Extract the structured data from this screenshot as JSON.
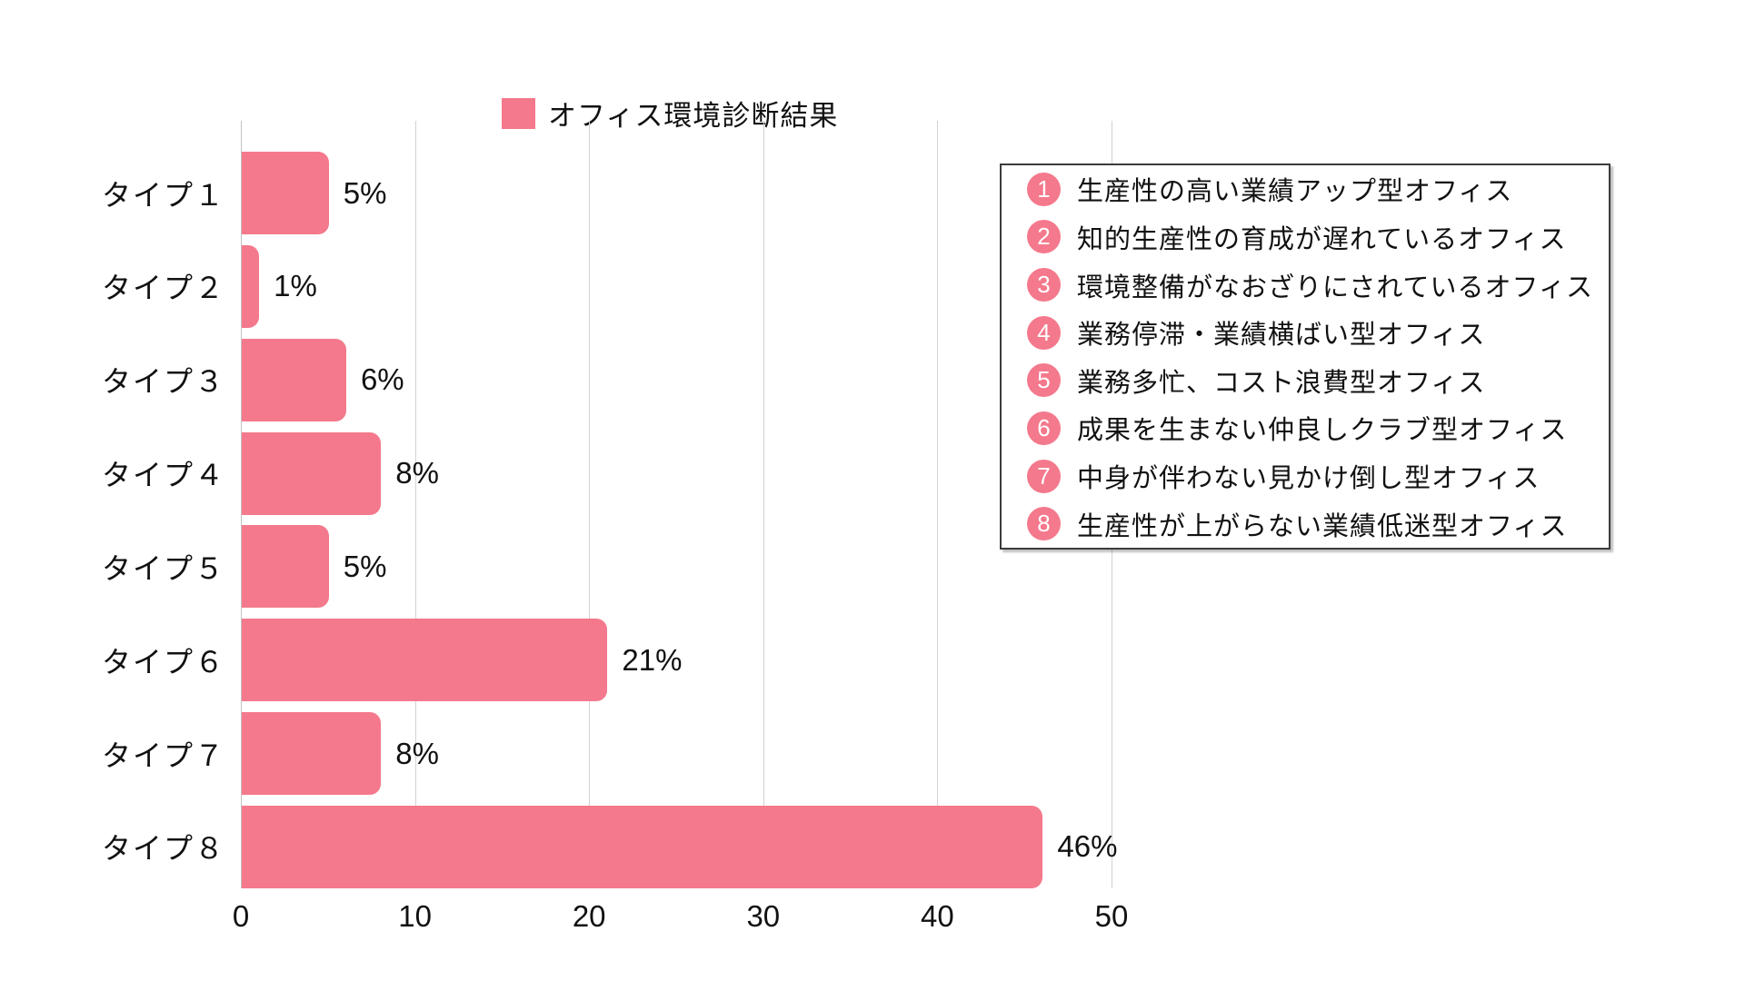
{
  "title": {
    "label": "オフィス環境診断結果",
    "swatch_color": "#F4798C"
  },
  "chart_data": {
    "type": "bar",
    "orientation": "horizontal",
    "title": "オフィス環境診断結果",
    "categories": [
      "タイプ１",
      "タイプ２",
      "タイプ３",
      "タイプ４",
      "タイプ５",
      "タイプ６",
      "タイプ７",
      "タイプ８"
    ],
    "values": [
      5,
      1,
      6,
      8,
      5,
      21,
      8,
      46
    ],
    "value_labels": [
      "5%",
      "1%",
      "6%",
      "8%",
      "5%",
      "21%",
      "8%",
      "46%"
    ],
    "xlabel": "",
    "ylabel": "",
    "xlim": [
      0,
      50
    ],
    "x_ticks": [
      "0",
      "10",
      "20",
      "30",
      "40",
      "50"
    ],
    "grid": true,
    "bar_color": "#F4798C",
    "grid_color": "#d2d2d2",
    "legend_position": "top"
  },
  "legend": {
    "circle_color": "#F4798C",
    "items": [
      {
        "number": "1",
        "label": "生産性の高い業績アップ型オフィス"
      },
      {
        "number": "2",
        "label": "知的生産性の育成が遅れているオフィス"
      },
      {
        "number": "3",
        "label": "環境整備がなおざりにされているオフィス"
      },
      {
        "number": "4",
        "label": "業務停滞・業績横ばい型オフィス"
      },
      {
        "number": "5",
        "label": "業務多忙、コスト浪費型オフィス"
      },
      {
        "number": "6",
        "label": "成果を生まない仲良しクラブ型オフィス"
      },
      {
        "number": "7",
        "label": "中身が伴わない見かけ倒し型オフィス"
      },
      {
        "number": "8",
        "label": "生産性が上がらない業績低迷型オフィス"
      }
    ]
  }
}
